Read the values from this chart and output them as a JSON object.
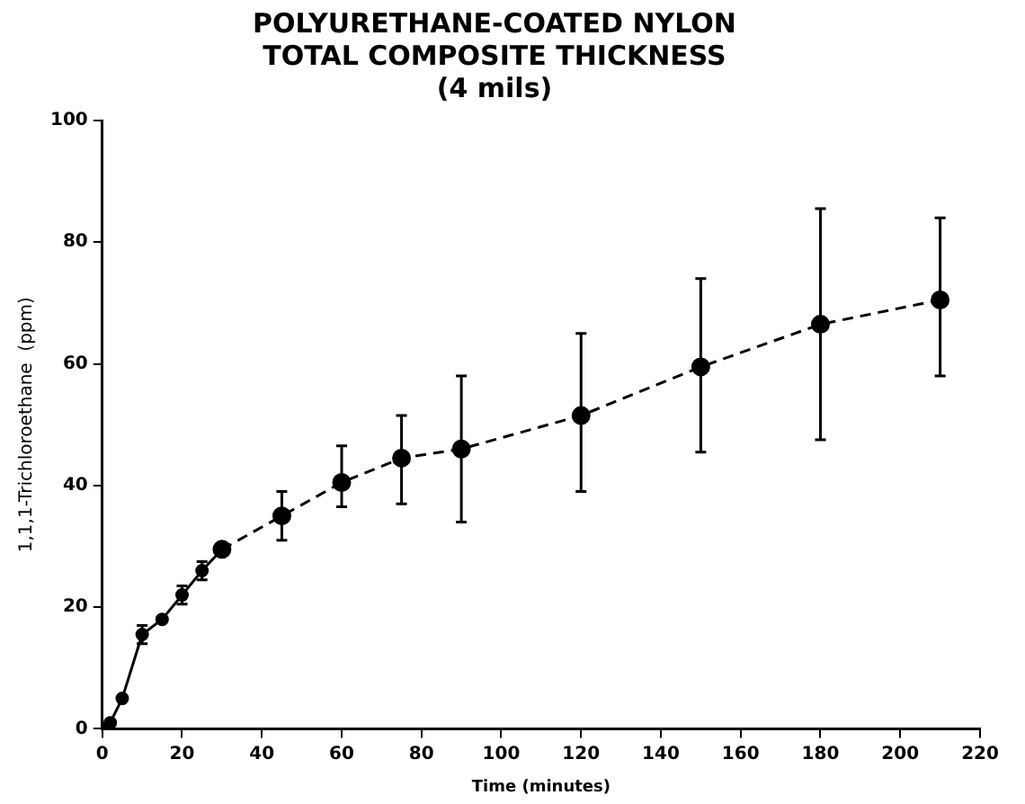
{
  "chart_data": {
    "type": "line",
    "title": "POLYURETHANE-COATED NYLON\nTOTAL COMPOSITE THICKNESS\n(4 mils)",
    "xlabel": "Time (minutes)",
    "ylabel": "1,1,1-Trichloroethane  (ppm)",
    "xlim": [
      0,
      220
    ],
    "xticks": [
      0,
      20,
      40,
      60,
      80,
      100,
      120,
      140,
      160,
      180,
      200,
      220
    ],
    "ylim": [
      0,
      100
    ],
    "yticks": [
      0,
      20,
      40,
      60,
      80,
      100
    ],
    "grid": false,
    "marker": "circle",
    "series": [
      {
        "color": "#000000",
        "line_style": "solid",
        "x": [
          0,
          2,
          5,
          10,
          15,
          20,
          25,
          30
        ],
        "values": [
          0,
          1,
          5,
          15.5,
          18,
          22,
          26,
          29.5
        ],
        "errors": [
          null,
          null,
          null,
          [
            14,
            17
          ],
          null,
          [
            20.5,
            23.5
          ],
          [
            24.5,
            27.5
          ],
          null
        ]
      },
      {
        "color": "#000000",
        "line_style": "dashed",
        "x": [
          30,
          45,
          60,
          75,
          90,
          120,
          150,
          180,
          210
        ],
        "values": [
          29.5,
          35,
          40.5,
          44.5,
          46,
          51.5,
          59.5,
          66.5,
          70.5
        ],
        "errors": [
          null,
          [
            31,
            39
          ],
          [
            36.5,
            46.5
          ],
          [
            37,
            51.5
          ],
          [
            34,
            58
          ],
          [
            39,
            65
          ],
          [
            45.5,
            74
          ],
          [
            47.5,
            85.5
          ],
          [
            58,
            84
          ]
        ]
      }
    ]
  }
}
